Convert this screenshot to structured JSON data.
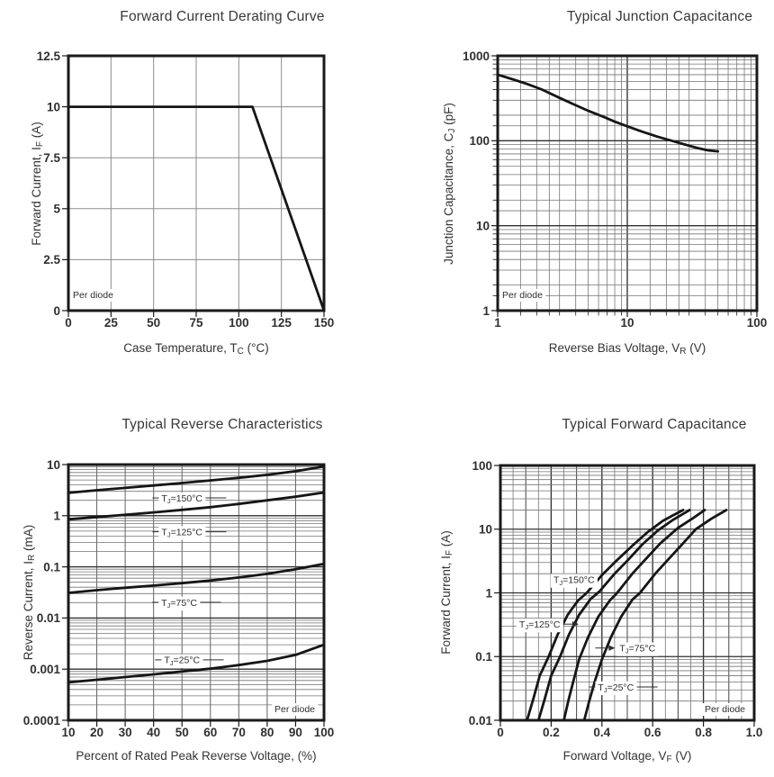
{
  "page": {
    "background": "#ffffff",
    "ink": "#1a1a1a",
    "text_color": "#333333",
    "grid_minor_color": "#757575",
    "grid_major_color": "#303030",
    "per_diode_label": "Per diode"
  },
  "chart_data": [
    {
      "id": "forward-current-derating",
      "type": "line",
      "title": "Forward Current Derating Curve",
      "xlabel": {
        "pre": "Case Temperature, T",
        "sub": "C",
        "post": " (°C)"
      },
      "ylabel": {
        "pre": "Forward Current, I",
        "sub": "F",
        "post": " (A)"
      },
      "xscale": "linear",
      "yscale": "linear",
      "xlim": [
        0,
        150
      ],
      "ylim": [
        0,
        12.5
      ],
      "xticks": [
        {
          "v": 0,
          "label": "0"
        },
        {
          "v": 25,
          "label": "25"
        },
        {
          "v": 50,
          "label": "50"
        },
        {
          "v": 75,
          "label": "75"
        },
        {
          "v": 100,
          "label": "100"
        },
        {
          "v": 125,
          "label": "125"
        },
        {
          "v": 150,
          "label": "150"
        }
      ],
      "yticks": [
        {
          "v": 0,
          "label": "0"
        },
        {
          "v": 2.5,
          "label": "2.5"
        },
        {
          "v": 5,
          "label": "5"
        },
        {
          "v": 7.5,
          "label": "7.5"
        },
        {
          "v": 10,
          "label": "10"
        },
        {
          "v": 12.5,
          "label": "12.5"
        }
      ],
      "note": {
        "text": "Per diode",
        "corner": "bottom-left"
      },
      "annotations": [],
      "series": [
        {
          "name": "max-forward-current",
          "points": [
            [
              0,
              10
            ],
            [
              108,
              10
            ],
            [
              150,
              0
            ]
          ]
        }
      ]
    },
    {
      "id": "junction-capacitance",
      "type": "line",
      "title": "Typical Junction Capacitance",
      "xlabel": {
        "pre": "Reverse Bias Voltage, V",
        "sub": "R",
        "post": " (V)"
      },
      "ylabel": {
        "pre": "Junction Capacitance, C",
        "sub": "J",
        "post": " (pF)"
      },
      "xscale": "log",
      "yscale": "log",
      "xlim": [
        1,
        100
      ],
      "ylim": [
        1,
        1000
      ],
      "xticks": [
        {
          "v": 1,
          "label": "1"
        },
        {
          "v": 10,
          "label": "10"
        },
        {
          "v": 100,
          "label": "100"
        }
      ],
      "yticks": [
        {
          "v": 1,
          "label": "1"
        },
        {
          "v": 10,
          "label": "10"
        },
        {
          "v": 100,
          "label": "100"
        },
        {
          "v": 1000,
          "label": "1000"
        }
      ],
      "note": {
        "text": "Per diode",
        "corner": "bottom-left"
      },
      "annotations": [],
      "series": [
        {
          "name": "junction-capacitance",
          "points": [
            [
              1,
              600
            ],
            [
              1.3,
              530
            ],
            [
              1.7,
              465
            ],
            [
              2.2,
              400
            ],
            [
              3,
              320
            ],
            [
              4,
              262
            ],
            [
              5,
              225
            ],
            [
              6.5,
              192
            ],
            [
              8,
              168
            ],
            [
              10,
              148
            ],
            [
              13,
              128
            ],
            [
              17,
              112
            ],
            [
              22,
              100
            ],
            [
              28,
              90
            ],
            [
              35,
              82
            ],
            [
              42,
              77
            ],
            [
              50,
              75
            ]
          ]
        }
      ]
    },
    {
      "id": "reverse-characteristics",
      "type": "line",
      "title": "Typical Reverse Characteristics",
      "xlabel": {
        "pre": "Percent of Rated Peak Reverse Voltage, (%)",
        "sub": "",
        "post": ""
      },
      "ylabel": {
        "pre": "Reverse Current, I",
        "sub": "R",
        "post": " (mA)"
      },
      "xscale": "linear",
      "yscale": "log",
      "xlim": [
        10,
        100
      ],
      "ylim": [
        0.0001,
        10
      ],
      "xticks": [
        {
          "v": 10,
          "label": "10"
        },
        {
          "v": 20,
          "label": "20"
        },
        {
          "v": 30,
          "label": "30"
        },
        {
          "v": 40,
          "label": "40"
        },
        {
          "v": 50,
          "label": "50"
        },
        {
          "v": 60,
          "label": "60"
        },
        {
          "v": 70,
          "label": "70"
        },
        {
          "v": 80,
          "label": "80"
        },
        {
          "v": 90,
          "label": "90"
        },
        {
          "v": 100,
          "label": "100"
        }
      ],
      "yticks": [
        {
          "v": 10,
          "label": "10"
        },
        {
          "v": 1,
          "label": "1"
        },
        {
          "v": 0.1,
          "label": "0.1"
        },
        {
          "v": 0.01,
          "label": "0.01"
        },
        {
          "v": 0.001,
          "label": "0.001"
        },
        {
          "v": 0.0001,
          "label": "0.0001"
        }
      ],
      "note": {
        "text": "Per diode",
        "corner": "bottom-right"
      },
      "annotations": [
        {
          "pre": "T",
          "sub": "J",
          "post": "=150°C",
          "x": 50,
          "y": 2.2,
          "leader": "dashes"
        },
        {
          "pre": "T",
          "sub": "J",
          "post": "=125°C",
          "x": 50,
          "y": 0.48,
          "leader": "dashes"
        },
        {
          "pre": "T",
          "sub": "J",
          "post": "=75°C",
          "x": 49,
          "y": 0.02,
          "leader": "dashes"
        },
        {
          "pre": "T",
          "sub": "J",
          "post": "=25°C",
          "x": 50,
          "y": 0.0015,
          "leader": "dashes"
        }
      ],
      "series": [
        {
          "name": "TJ=150C",
          "points": [
            [
              10,
              2.8
            ],
            [
              20,
              3.15
            ],
            [
              30,
              3.5
            ],
            [
              40,
              3.9
            ],
            [
              50,
              4.35
            ],
            [
              60,
              4.9
            ],
            [
              70,
              5.5
            ],
            [
              80,
              6.3
            ],
            [
              90,
              7.4
            ],
            [
              100,
              9.2
            ]
          ]
        },
        {
          "name": "TJ=125C",
          "points": [
            [
              10,
              0.85
            ],
            [
              20,
              0.94
            ],
            [
              30,
              1.04
            ],
            [
              40,
              1.16
            ],
            [
              50,
              1.3
            ],
            [
              60,
              1.47
            ],
            [
              70,
              1.7
            ],
            [
              80,
              2.0
            ],
            [
              90,
              2.35
            ],
            [
              100,
              2.85
            ]
          ]
        },
        {
          "name": "TJ=75C",
          "points": [
            [
              10,
              0.031
            ],
            [
              20,
              0.035
            ],
            [
              30,
              0.039
            ],
            [
              40,
              0.043
            ],
            [
              50,
              0.048
            ],
            [
              60,
              0.054
            ],
            [
              70,
              0.062
            ],
            [
              80,
              0.073
            ],
            [
              90,
              0.09
            ],
            [
              100,
              0.115
            ]
          ]
        },
        {
          "name": "TJ=25C",
          "points": [
            [
              10,
              0.00055
            ],
            [
              20,
              0.00062
            ],
            [
              30,
              0.0007
            ],
            [
              40,
              0.00079
            ],
            [
              50,
              0.0009
            ],
            [
              60,
              0.00102
            ],
            [
              70,
              0.0012
            ],
            [
              80,
              0.00145
            ],
            [
              90,
              0.0019
            ],
            [
              100,
              0.003
            ]
          ]
        }
      ]
    },
    {
      "id": "forward-characteristics",
      "type": "line",
      "title": "Typical Forward Capacitance",
      "xlabel": {
        "pre": "Forward Voltage, V",
        "sub": "F",
        "post": " (V)"
      },
      "ylabel": {
        "pre": "Forward Current, I",
        "sub": "F",
        "post": " (A)"
      },
      "xscale": "linear",
      "yscale": "log",
      "xlim": [
        0,
        1.0
      ],
      "ylim": [
        0.01,
        100
      ],
      "xticks": [
        {
          "v": 0,
          "label": "0"
        },
        {
          "v": 0.2,
          "label": "0.2"
        },
        {
          "v": 0.4,
          "label": "0.4"
        },
        {
          "v": 0.6,
          "label": "0.6"
        },
        {
          "v": 0.8,
          "label": "0.8"
        },
        {
          "v": 1.0,
          "label": "1.0"
        }
      ],
      "yticks": [
        {
          "v": 100,
          "label": "100"
        },
        {
          "v": 10,
          "label": "10"
        },
        {
          "v": 1,
          "label": "1"
        },
        {
          "v": 0.1,
          "label": "0.1"
        },
        {
          "v": 0.01,
          "label": "0.01"
        }
      ],
      "note": {
        "text": "Per diode",
        "corner": "bottom-right"
      },
      "annotations": [
        {
          "pre": "T",
          "sub": "J",
          "post": "=150°C",
          "x": 0.29,
          "y": 1.6,
          "leader": "none"
        },
        {
          "pre": "T",
          "sub": "J",
          "post": "=125°C",
          "x": 0.155,
          "y": 0.32,
          "leader": "arrow-right"
        },
        {
          "pre": "T",
          "sub": "J",
          "post": "=75°C",
          "x": 0.54,
          "y": 0.135,
          "leader": "arrow-left"
        },
        {
          "pre": "T",
          "sub": "J",
          "post": "=25°C",
          "x": 0.455,
          "y": 0.033,
          "leader": "dashes"
        }
      ],
      "series": [
        {
          "name": "TJ=150C",
          "points": [
            [
              0.105,
              0.01
            ],
            [
              0.13,
              0.022
            ],
            [
              0.155,
              0.05
            ],
            [
              0.19,
              0.1
            ],
            [
              0.225,
              0.22
            ],
            [
              0.265,
              0.45
            ],
            [
              0.305,
              0.75
            ],
            [
              0.34,
              1
            ],
            [
              0.4,
              1.9
            ],
            [
              0.45,
              3
            ],
            [
              0.52,
              5.5
            ],
            [
              0.58,
              9
            ],
            [
              0.64,
              13.5
            ],
            [
              0.68,
              16.5
            ],
            [
              0.72,
              20
            ]
          ]
        },
        {
          "name": "TJ=125C",
          "points": [
            [
              0.15,
              0.01
            ],
            [
              0.175,
              0.022
            ],
            [
              0.2,
              0.05
            ],
            [
              0.235,
              0.1
            ],
            [
              0.27,
              0.22
            ],
            [
              0.31,
              0.45
            ],
            [
              0.355,
              0.8
            ],
            [
              0.39,
              1.05
            ],
            [
              0.45,
              2
            ],
            [
              0.5,
              3.2
            ],
            [
              0.56,
              5.8
            ],
            [
              0.62,
              9.5
            ],
            [
              0.68,
              14
            ],
            [
              0.745,
              20
            ]
          ]
        },
        {
          "name": "TJ=75C",
          "points": [
            [
              0.25,
              0.01
            ],
            [
              0.27,
              0.022
            ],
            [
              0.29,
              0.045
            ],
            [
              0.31,
              0.09
            ],
            [
              0.345,
              0.2
            ],
            [
              0.385,
              0.42
            ],
            [
              0.43,
              0.75
            ],
            [
              0.46,
              1
            ],
            [
              0.52,
              2
            ],
            [
              0.57,
              3.3
            ],
            [
              0.63,
              6
            ],
            [
              0.7,
              10.5
            ],
            [
              0.76,
              15
            ],
            [
              0.805,
              20
            ]
          ]
        },
        {
          "name": "TJ=25C",
          "points": [
            [
              0.33,
              0.01
            ],
            [
              0.35,
              0.02
            ],
            [
              0.375,
              0.045
            ],
            [
              0.4,
              0.09
            ],
            [
              0.435,
              0.2
            ],
            [
              0.475,
              0.42
            ],
            [
              0.52,
              0.78
            ],
            [
              0.55,
              1
            ],
            [
              0.61,
              2
            ],
            [
              0.66,
              3.3
            ],
            [
              0.72,
              6
            ],
            [
              0.77,
              10
            ],
            [
              0.83,
              14.5
            ],
            [
              0.89,
              20
            ]
          ]
        }
      ]
    }
  ]
}
